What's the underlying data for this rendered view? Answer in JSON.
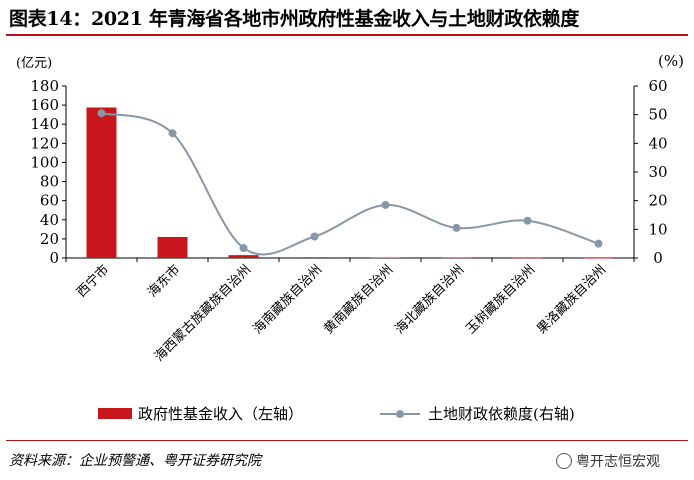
{
  "title": "图表14：2021 年青海省各地市州政府性基金收入与土地财政依赖度",
  "unit_left": "(亿元)",
  "unit_right": "(%)",
  "source": "资料来源：企业预警通、粤开证券研究院",
  "watermark": "粤开志恒宏观",
  "colors": {
    "bar": "#c8161d",
    "line": "#8896a6",
    "rule": "#b5121b"
  },
  "chart_data": {
    "type": "bar",
    "categories": [
      "西宁市",
      "海东市",
      "海西蒙古族藏族自治州",
      "海南藏族自治州",
      "黄南藏族自治州",
      "海北藏族自治州",
      "玉树藏族自治州",
      "果洛藏族自治州"
    ],
    "series": [
      {
        "name": "政府性基金收入（左轴）",
        "type": "bar",
        "axis": "left",
        "values": [
          157.5,
          22,
          3,
          0.8,
          0.5,
          0.4,
          0.2,
          0.1
        ]
      },
      {
        "name": "土地财政依赖度(右轴)",
        "type": "line",
        "axis": "right",
        "smooth": true,
        "values": [
          50.5,
          43.5,
          3.5,
          7.5,
          18.5,
          10.5,
          13,
          5
        ]
      }
    ],
    "left_axis": {
      "ylim": [
        0,
        180
      ],
      "ticks": [
        "0",
        "20",
        "40",
        "60",
        "80",
        "100",
        "120",
        "140",
        "160",
        "180"
      ]
    },
    "right_axis": {
      "ylim": [
        0,
        60
      ],
      "ticks": [
        "0",
        "10",
        "20",
        "30",
        "40",
        "50",
        "60"
      ]
    },
    "legend_position": "bottom",
    "grid": false
  }
}
